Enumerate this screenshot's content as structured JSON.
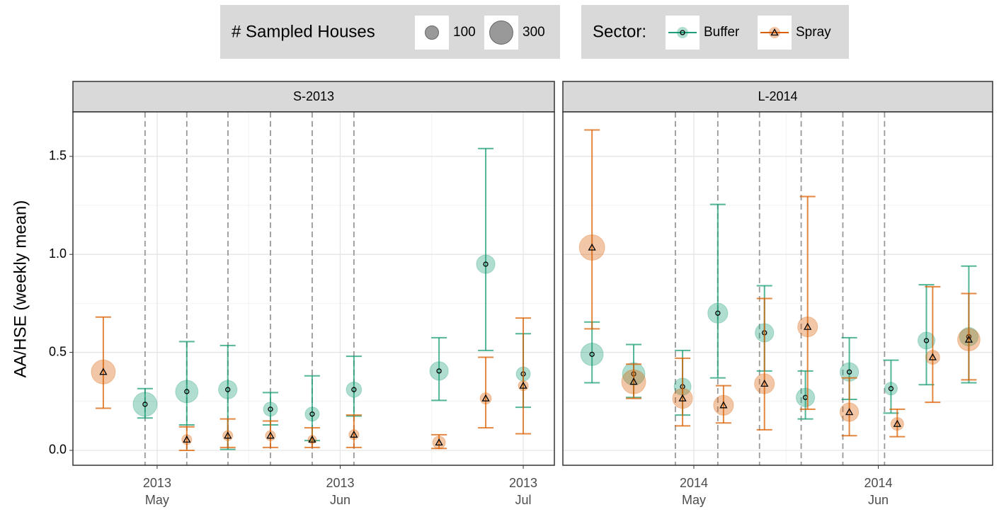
{
  "legend": {
    "size_title": "# Sampled Houses",
    "sizes": [
      100,
      300
    ],
    "sector_title": "Sector:"
  },
  "chart_data": [
    {
      "type": "scatter",
      "title": "S-2013",
      "y_label": "AA/HSE (weekly mean)",
      "xlim": [
        4.54,
        7.17
      ],
      "xticks": [
        {
          "value": 5,
          "label": "2013\nMay"
        },
        {
          "value": 6,
          "label": "2013\nJun"
        },
        {
          "value": 7,
          "label": "2013\nJul"
        }
      ],
      "ylim": [
        -0.076,
        1.727
      ],
      "yticks": [
        {
          "value": 0,
          "label": "0.0"
        },
        0.5,
        {
          "value": 1,
          "label": "1.0"
        },
        1.5
      ],
      "grid": true,
      "spray_events": [
        4.934,
        5.162,
        5.387,
        5.619,
        5.847,
        6.075
      ],
      "series": [
        {
          "name": "Buffer",
          "color": "#1b9e77",
          "marker": "circle",
          "x": [
            4.934,
            5.162,
            5.386,
            5.619,
            5.847,
            6.075,
            6.54,
            6.795,
            7.0
          ],
          "values": [
            0.235,
            0.3,
            0.31,
            0.21,
            0.185,
            0.31,
            0.405,
            0.95,
            0.39
          ],
          "lower": [
            0.165,
            0.13,
            0.005,
            0.13,
            0.05,
            0.175,
            0.255,
            0.51,
            0.22
          ],
          "upper": [
            0.315,
            0.555,
            0.535,
            0.295,
            0.38,
            0.48,
            0.575,
            1.54,
            0.595
          ],
          "sizes": [
            320,
            280,
            190,
            110,
            110,
            130,
            190,
            190,
            110
          ]
        },
        {
          "name": "Spray",
          "color": "#d95f02",
          "marker": "triangle",
          "x": [
            4.706,
            5.162,
            5.386,
            5.619,
            5.847,
            6.075,
            6.54,
            6.795,
            7.0
          ],
          "values": [
            0.4,
            0.055,
            0.075,
            0.075,
            0.055,
            0.08,
            0.04,
            0.265,
            0.33
          ],
          "lower": [
            0.215,
            0.0,
            0.015,
            0.015,
            0.015,
            0.015,
            0.01,
            0.115,
            0.085
          ],
          "upper": [
            0.68,
            0.12,
            0.16,
            0.15,
            0.115,
            0.18,
            0.08,
            0.475,
            0.675
          ],
          "sizes": [
            320,
            55,
            55,
            55,
            40,
            55,
            90,
            70,
            55
          ]
        }
      ]
    },
    {
      "type": "scatter",
      "title": "L-2014",
      "xlim": [
        4.29,
        6.62
      ],
      "xticks": [
        {
          "value": 5,
          "label": "2014\nMay"
        },
        {
          "value": 6,
          "label": "2014\nJun"
        }
      ],
      "ylim": [
        -0.076,
        1.727
      ],
      "yticks": [
        0,
        0.5,
        1,
        1.5
      ],
      "grid": true,
      "spray_events": [
        4.9,
        5.13,
        5.356,
        5.582,
        5.808,
        6.034
      ],
      "series": [
        {
          "name": "Buffer",
          "color": "#1b9e77",
          "marker": "circle",
          "x": [
            4.448,
            4.674,
            4.939,
            5.13,
            5.383,
            5.605,
            5.843,
            6.069,
            6.261,
            6.491
          ],
          "values": [
            0.49,
            0.39,
            0.325,
            0.7,
            0.6,
            0.27,
            0.4,
            0.315,
            0.56,
            0.58
          ],
          "lower": [
            0.345,
            0.27,
            0.18,
            0.37,
            0.405,
            0.16,
            0.26,
            0.19,
            0.335,
            0.345
          ],
          "upper": [
            0.655,
            0.54,
            0.51,
            1.255,
            0.84,
            0.405,
            0.575,
            0.46,
            0.845,
            0.94
          ],
          "sizes": [
            280,
            280,
            160,
            220,
            190,
            190,
            190,
            90,
            160,
            190
          ]
        },
        {
          "name": "Spray",
          "color": "#d95f02",
          "marker": "triangle",
          "x": [
            4.448,
            4.674,
            4.939,
            5.161,
            5.383,
            5.617,
            5.843,
            6.103,
            6.295,
            6.491
          ],
          "values": [
            1.035,
            0.35,
            0.265,
            0.23,
            0.34,
            0.63,
            0.195,
            0.135,
            0.475,
            0.565
          ],
          "lower": [
            0.62,
            0.265,
            0.125,
            0.14,
            0.105,
            0.21,
            0.075,
            0.07,
            0.245,
            0.36
          ],
          "upper": [
            1.635,
            0.44,
            0.47,
            0.33,
            0.775,
            1.295,
            0.37,
            0.21,
            0.835,
            0.8
          ],
          "sizes": [
            360,
            320,
            220,
            220,
            220,
            220,
            190,
            90,
            110,
            280
          ]
        }
      ]
    }
  ]
}
